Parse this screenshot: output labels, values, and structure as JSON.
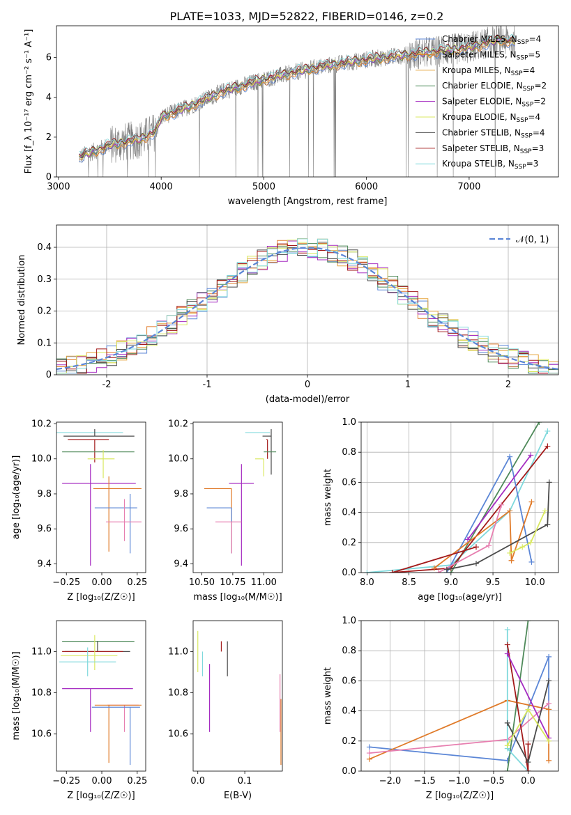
{
  "figure_title": "PLATE=1033, MJD=52822, FIBERID=0146, z=0.2",
  "colors": {
    "chabrier_miles": "#5b86d6",
    "salpeter_miles": "#e07b2a",
    "kroupa_miles": "#e6a33a",
    "chabrier_elodie": "#4f8a5a",
    "salpeter_elodie": "#a52bc1",
    "kroupa_elodie": "#d9e860",
    "chabrier_stelib": "#4a4a4a",
    "salpeter_stelib": "#a31a1a",
    "kroupa_stelib": "#7fd9dc",
    "pink": "#e77fb0",
    "data": "#7f7f7f",
    "normal": "#5b86d6"
  },
  "chart_data": [
    {
      "id": "spectrum",
      "type": "line",
      "xlabel": "wavelength [Angstrom, rest frame]",
      "ylabel": "Flux [f_λ 10⁻¹⁷ erg cm⁻² s⁻¹ A⁻¹]",
      "xlim": [
        2980,
        7870
      ],
      "ylim": [
        0,
        7.6
      ],
      "xticks": [
        3000,
        4000,
        5000,
        6000,
        7000
      ],
      "yticks": [
        0,
        2,
        4,
        6
      ],
      "grid": false,
      "legend_position": "top-right",
      "continuum": {
        "x": [
          3200,
          3500,
          3800,
          3950,
          4000,
          4300,
          4600,
          5000,
          5500,
          6000,
          6500,
          7000,
          7300,
          7450
        ],
        "y": [
          1.0,
          1.6,
          1.9,
          2.3,
          3.0,
          3.6,
          4.3,
          4.9,
          5.5,
          5.9,
          6.2,
          6.5,
          6.9,
          6.8
        ]
      },
      "legend": [
        {
          "label": "Chabrier MILES, N",
          "sub": "SSP",
          "suffix": "=4",
          "color": "chabrier_miles"
        },
        {
          "label": "Salpeter MILES, N",
          "sub": "SSP",
          "suffix": "=5",
          "color": "salpeter_miles"
        },
        {
          "label": "Kroupa MILES, N",
          "sub": "SSP",
          "suffix": "=4",
          "color": "kroupa_miles"
        },
        {
          "label": "Chabrier ELODIE, N",
          "sub": "SSP",
          "suffix": "=2",
          "color": "chabrier_elodie"
        },
        {
          "label": "Salpeter ELODIE, N",
          "sub": "SSP",
          "suffix": "=2",
          "color": "salpeter_elodie"
        },
        {
          "label": "Kroupa ELODIE, N",
          "sub": "SSP",
          "suffix": "=4",
          "color": "kroupa_elodie"
        },
        {
          "label": "Chabrier STELIB, N",
          "sub": "SSP",
          "suffix": "=4",
          "color": "chabrier_stelib"
        },
        {
          "label": "Salpeter STELIB, N",
          "sub": "SSP",
          "suffix": "=3",
          "color": "salpeter_stelib"
        },
        {
          "label": "Kroupa STELIB, N",
          "sub": "SSP",
          "suffix": "=3",
          "color": "kroupa_stelib"
        }
      ]
    },
    {
      "id": "residuals",
      "type": "histogram",
      "xlabel": "(data-model)/error",
      "ylabel": "Normed distribution",
      "xlim": [
        -2.5,
        2.5
      ],
      "ylim": [
        0,
        0.47
      ],
      "xticks": [
        -2,
        -1,
        0,
        1,
        2
      ],
      "yticks": [
        0.0,
        0.1,
        0.2,
        0.3,
        0.4
      ],
      "grid": true,
      "legend": [
        {
          "label": "𝒩(0, 1)",
          "color": "normal"
        }
      ],
      "legend_position": "top-right",
      "bin_width": 0.1
    },
    {
      "id": "age_vs_Z",
      "type": "errorbar",
      "xlabel": "Z [log₁₀(Z/Z☉)]",
      "ylabel": "age  [log₁₀(age/yr)]",
      "xlim": [
        -0.32,
        0.31
      ],
      "ylim": [
        9.35,
        10.21
      ],
      "xticks": [
        -0.25,
        0.0,
        0.25
      ],
      "xticklabels": [
        "−0.25",
        "0.00",
        "0.25"
      ],
      "yticks": [
        9.4,
        9.6,
        9.8,
        10.0,
        10.2
      ],
      "yticklabels": [
        "9.4",
        "9.6",
        "9.8",
        "10.0",
        "10.2"
      ],
      "points": [
        {
          "x": -0.03,
          "xerr": [
            0.3,
            0.18
          ],
          "y": 10.15,
          "yerr": [
            0.0,
            0.0
          ],
          "color": "kroupa_stelib"
        },
        {
          "x": -0.05,
          "xerr": [
            0.22,
            0.28
          ],
          "y": 10.13,
          "yerr": [
            0.0,
            0.04
          ],
          "color": "chabrier_stelib"
        },
        {
          "x": -0.05,
          "xerr": [
            0.19,
            0.1
          ],
          "y": 10.11,
          "yerr": [
            0.13,
            0.0
          ],
          "color": "salpeter_stelib"
        },
        {
          "x": -0.05,
          "xerr": [
            0.23,
            0.28
          ],
          "y": 10.04,
          "yerr": [
            0.0,
            0.0
          ],
          "color": "chabrier_elodie"
        },
        {
          "x": 0.01,
          "xerr": [
            0.11,
            0.08
          ],
          "y": 10.0,
          "yerr": [
            0.11,
            0.05
          ],
          "color": "kroupa_elodie"
        },
        {
          "x": -0.08,
          "xerr": [
            0.2,
            0.32
          ],
          "y": 9.86,
          "yerr": [
            0.47,
            0.11
          ],
          "color": "salpeter_elodie"
        },
        {
          "x": 0.05,
          "xerr": [
            0.11,
            0.23
          ],
          "y": 9.83,
          "yerr": [
            0.36,
            0.07
          ],
          "color": "salpeter_miles"
        },
        {
          "x": 0.2,
          "xerr": [
            0.25,
            0.05
          ],
          "y": 9.72,
          "yerr": [
            0.26,
            0.08
          ],
          "color": "chabrier_miles"
        },
        {
          "x": 0.16,
          "xerr": [
            0.13,
            0.12
          ],
          "y": 9.64,
          "yerr": [
            0.11,
            0.13
          ],
          "color": "pink"
        }
      ]
    },
    {
      "id": "age_vs_mass",
      "type": "errorbar",
      "xlabel": "mass [log₁₀(M/M☉)]",
      "ylabel": "",
      "xlim": [
        10.43,
        11.15
      ],
      "ylim": [
        9.35,
        10.21
      ],
      "xticks": [
        10.5,
        10.75,
        11.0
      ],
      "xticklabels": [
        "10.50",
        "10.75",
        "11.00"
      ],
      "yticks": [
        9.4,
        9.6,
        9.8,
        10.0,
        10.2
      ],
      "yticklabels": [
        "9.4",
        "9.6",
        "9.8",
        "10.0",
        "10.2"
      ],
      "points": [
        {
          "x": 11.0,
          "xerr": [
            0.15,
            0.05
          ],
          "y": 10.15,
          "yerr": [
            0.0,
            0.0
          ],
          "color": "kroupa_stelib"
        },
        {
          "x": 11.06,
          "xerr": [
            0.07,
            0.0
          ],
          "y": 10.13,
          "yerr": [
            0.22,
            0.04
          ],
          "color": "chabrier_stelib"
        },
        {
          "x": 11.03,
          "xerr": [
            0.01,
            0.0
          ],
          "y": 10.11,
          "yerr": [
            0.11,
            0.0
          ],
          "color": "salpeter_stelib"
        },
        {
          "x": 11.05,
          "xerr": [
            0.05,
            0.05
          ],
          "y": 10.04,
          "yerr": [
            0.0,
            0.0
          ],
          "color": "chabrier_elodie"
        },
        {
          "x": 11.0,
          "xerr": [
            0.07,
            0.0
          ],
          "y": 10.0,
          "yerr": [
            0.1,
            0.0
          ],
          "color": "kroupa_elodie"
        },
        {
          "x": 10.82,
          "xerr": [
            0.1,
            0.1
          ],
          "y": 9.86,
          "yerr": [
            0.47,
            0.11
          ],
          "color": "salpeter_elodie"
        },
        {
          "x": 10.74,
          "xerr": [
            0.22,
            0.0
          ],
          "y": 9.83,
          "yerr": [
            0.37,
            0.0
          ],
          "color": "salpeter_miles"
        },
        {
          "x": 10.74,
          "xerr": [
            0.2,
            0.0
          ],
          "y": 9.72,
          "yerr": [
            0.26,
            0.0
          ],
          "color": "chabrier_miles"
        },
        {
          "x": 10.74,
          "xerr": [
            0.13,
            0.08
          ],
          "y": 9.64,
          "yerr": [
            0.18,
            0.0
          ],
          "color": "pink"
        }
      ]
    },
    {
      "id": "weight_vs_age",
      "type": "line",
      "xlabel": "age  [log₁₀(age/yr)]",
      "ylabel": "mass weight",
      "xlim": [
        7.93,
        10.28
      ],
      "ylim": [
        0,
        1.0
      ],
      "xticks": [
        8.0,
        8.5,
        9.0,
        9.5,
        10.0
      ],
      "xticklabels": [
        "8.0",
        "8.5",
        "9.0",
        "9.5",
        "10.0"
      ],
      "yticks": [
        0,
        0.2,
        0.4,
        0.6,
        0.8,
        1.0
      ],
      "yticklabels": [
        "0.0",
        "0.2",
        "0.4",
        "0.6",
        "0.8",
        "1.0"
      ],
      "grid": true,
      "series": [
        {
          "color": "kroupa_stelib",
          "x": [
            8.0,
            9.0,
            9.7,
            10.15
          ],
          "y": [
            0.0,
            0.05,
            0.41,
            0.94
          ]
        },
        {
          "color": "chabrier_elodie",
          "x": [
            9.0,
            10.05
          ],
          "y": [
            0.0,
            1.0
          ]
        },
        {
          "color": "salpeter_stelib",
          "x": [
            8.3,
            9.0,
            10.15
          ],
          "y": [
            0.0,
            0.03,
            0.84
          ]
        },
        {
          "color": "chabrier_miles",
          "x": [
            8.95,
            9.7,
            9.96
          ],
          "y": [
            0.0,
            0.77,
            0.07
          ]
        },
        {
          "color": "salpeter_elodie",
          "x": [
            9.2,
            9.95
          ],
          "y": [
            0.22,
            0.78
          ]
        },
        {
          "color": "salpeter_miles",
          "x": [
            8.8,
            9.7,
            9.72,
            9.96
          ],
          "y": [
            0.03,
            0.41,
            0.08,
            0.47
          ]
        },
        {
          "color": "pink",
          "x": [
            8.85,
            9.45,
            9.6
          ],
          "y": [
            0.0,
            0.18,
            0.45
          ]
        },
        {
          "color": "chabrier_stelib",
          "x": [
            8.95,
            9.3,
            10.15,
            10.17
          ],
          "y": [
            0.02,
            0.06,
            0.32,
            0.6
          ]
        },
        {
          "color": "kroupa_elodie",
          "x": [
            9.7,
            9.85,
            9.95,
            10.12
          ],
          "y": [
            0.13,
            0.17,
            0.2,
            0.41
          ]
        },
        {
          "color": "salpeter_stelib",
          "x": [
            8.3,
            9.3
          ],
          "y": [
            0.0,
            0.17
          ]
        }
      ]
    },
    {
      "id": "mass_vs_Z",
      "type": "errorbar",
      "xlabel": "Z [log₁₀(Z/Z☉)]",
      "ylabel": "mass [log₁₀(M/M☉)]",
      "xlim": [
        -0.32,
        0.31
      ],
      "ylim": [
        10.42,
        11.15
      ],
      "xticks": [
        -0.25,
        0.0,
        0.25
      ],
      "xticklabels": [
        "−0.25",
        "0.00",
        "0.25"
      ],
      "yticks": [
        10.6,
        10.8,
        11.0
      ],
      "yticklabels": [
        "10.6",
        "10.8",
        "11.0"
      ],
      "points": [
        {
          "x": -0.05,
          "xerr": [
            0.23,
            0.28
          ],
          "y": 11.05,
          "yerr": [
            0.0,
            0.0
          ],
          "color": "chabrier_elodie"
        },
        {
          "x": -0.03,
          "xerr": [
            0.23,
            0.23
          ],
          "y": 11.0,
          "yerr": [
            0.0,
            0.05
          ],
          "color": "chabrier_stelib"
        },
        {
          "x": -0.05,
          "xerr": [
            0.23,
            0.2
          ],
          "y": 11.0,
          "yerr": [
            0.0,
            0.0
          ],
          "color": "salpeter_stelib"
        },
        {
          "x": -0.05,
          "xerr": [
            0.24,
            0.16
          ],
          "y": 10.98,
          "yerr": [
            0.07,
            0.1
          ],
          "color": "kroupa_elodie"
        },
        {
          "x": -0.1,
          "xerr": [
            0.2,
            0.2
          ],
          "y": 10.95,
          "yerr": [
            0.07,
            0.07
          ],
          "color": "kroupa_stelib"
        },
        {
          "x": -0.08,
          "xerr": [
            0.2,
            0.3
          ],
          "y": 10.82,
          "yerr": [
            0.21,
            0.0
          ],
          "color": "salpeter_elodie"
        },
        {
          "x": 0.16,
          "xerr": [
            0.12,
            0.1
          ],
          "y": 10.74,
          "yerr": [
            0.13,
            0.0
          ],
          "color": "pink"
        },
        {
          "x": 0.05,
          "xerr": [
            0.1,
            0.23
          ],
          "y": 10.74,
          "yerr": [
            0.28,
            0.0
          ],
          "color": "salpeter_miles"
        },
        {
          "x": 0.2,
          "xerr": [
            0.27,
            0.07
          ],
          "y": 10.73,
          "yerr": [
            0.28,
            0.0
          ],
          "color": "chabrier_miles"
        }
      ]
    },
    {
      "id": "mass_vs_ebv",
      "type": "errorbar",
      "xlabel": "E(B-V)",
      "ylabel": "",
      "xlim": [
        -0.01,
        0.18
      ],
      "ylim": [
        10.42,
        11.15
      ],
      "xticks": [
        0.0,
        0.1
      ],
      "xticklabels": [
        "0.0",
        "0.1"
      ],
      "yticks": [
        10.6,
        10.8,
        11.0
      ],
      "yticklabels": [
        "10.6",
        "10.8",
        "11.0"
      ],
      "points": [
        {
          "x": 0.0,
          "y": 11.05,
          "yerr": [
            0.15,
            0.05
          ],
          "color": "kroupa_elodie"
        },
        {
          "x": 0.01,
          "y": 10.95,
          "yerr": [
            0.07,
            0.05
          ],
          "color": "kroupa_stelib"
        },
        {
          "x": 0.025,
          "y": 10.82,
          "yerr": [
            0.21,
            0.12
          ],
          "color": "salpeter_elodie"
        },
        {
          "x": 0.05,
          "y": 11.0,
          "yerr": [
            0.0,
            0.05
          ],
          "color": "salpeter_stelib"
        },
        {
          "x": 0.063,
          "y": 11.0,
          "yerr": [
            0.12,
            0.05
          ],
          "color": "chabrier_stelib"
        },
        {
          "x": 0.175,
          "y": 10.74,
          "yerr": [
            0.13,
            0.15
          ],
          "color": "pink"
        },
        {
          "x": 0.177,
          "y": 10.74,
          "yerr": [
            0.29,
            0.03
          ],
          "color": "salpeter_miles"
        }
      ]
    },
    {
      "id": "weight_vs_Z",
      "type": "line",
      "xlabel": "Z [log₁₀(Z/Z☉)]",
      "ylabel": "mass weight",
      "xlim": [
        -2.42,
        0.44
      ],
      "ylim": [
        0,
        1.0
      ],
      "xticks": [
        -2.0,
        -1.5,
        -1.0,
        -0.5,
        0.0
      ],
      "xticklabels": [
        "−2.0",
        "−1.5",
        "−1.0",
        "−0.5",
        "0.0"
      ],
      "yticks": [
        0,
        0.2,
        0.4,
        0.6,
        0.8,
        1.0
      ],
      "yticklabels": [
        "0.0",
        "0.2",
        "0.4",
        "0.6",
        "0.8",
        "1.0"
      ],
      "grid": true,
      "series": [
        {
          "color": "chabrier_miles",
          "x": [
            -2.3,
            -0.3,
            0.3,
            0.3
          ],
          "y": [
            0.16,
            0.07,
            0.76,
            0.41
          ]
        },
        {
          "color": "salpeter_miles",
          "x": [
            -2.3,
            -0.3,
            0.3,
            0.3
          ],
          "y": [
            0.08,
            0.47,
            0.41,
            0.07
          ]
        },
        {
          "color": "pink",
          "x": [
            -2.3,
            -0.3,
            0.3
          ],
          "y": [
            0.12,
            0.21,
            0.45
          ]
        },
        {
          "color": "chabrier_elodie",
          "x": [
            -0.3,
            0.0
          ],
          "y": [
            0.0,
            1.0
          ]
        },
        {
          "color": "kroupa_stelib",
          "x": [
            -0.3,
            -0.3,
            0.0
          ],
          "y": [
            0.94,
            0.15,
            0.0
          ]
        },
        {
          "color": "salpeter_stelib",
          "x": [
            -0.3,
            0.0,
            0.0
          ],
          "y": [
            0.84,
            0.0,
            0.18
          ]
        },
        {
          "color": "salpeter_elodie",
          "x": [
            -0.3,
            0.3
          ],
          "y": [
            0.78,
            0.22
          ]
        },
        {
          "color": "chabrier_stelib",
          "x": [
            -0.3,
            0.0,
            0.3
          ],
          "y": [
            0.32,
            0.06,
            0.6
          ]
        },
        {
          "color": "kroupa_elodie",
          "x": [
            -0.3,
            0.0,
            0.3
          ],
          "y": [
            0.17,
            0.41,
            0.2
          ]
        }
      ]
    }
  ]
}
